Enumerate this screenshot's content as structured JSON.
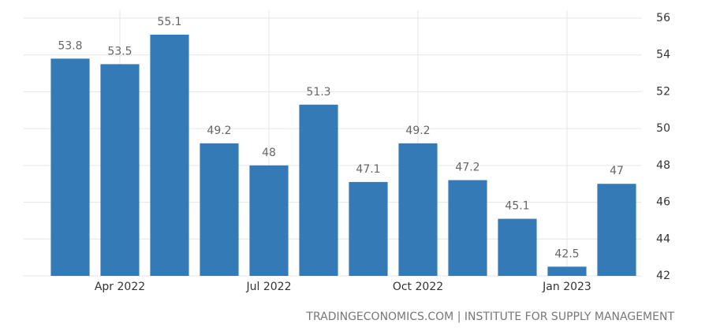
{
  "chart_data": {
    "type": "bar",
    "categories": [
      null,
      "Apr 2022",
      null,
      null,
      "Jul 2022",
      null,
      null,
      "Oct 2022",
      null,
      null,
      "Jan 2023",
      null
    ],
    "values": [
      53.8,
      53.5,
      55.1,
      49.2,
      48,
      51.3,
      47.1,
      49.2,
      47.2,
      45.1,
      42.5,
      47
    ],
    "color": "#337ab7",
    "ylim": [
      42,
      56
    ],
    "yticks": [
      42,
      44,
      46,
      48,
      50,
      52,
      54,
      56
    ],
    "grid": true,
    "source": "TRADINGECONOMICS.COM | INSTITUTE FOR SUPPLY MANAGEMENT"
  }
}
